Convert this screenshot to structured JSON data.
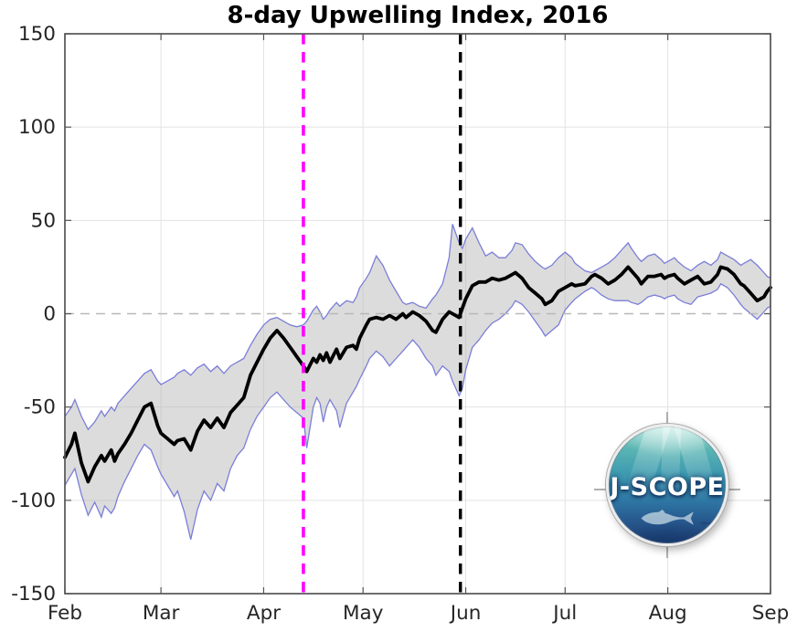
{
  "title": "8-day Upwelling Index, 2016",
  "logo": {
    "text": "J-SCOPE"
  },
  "chart_data": {
    "type": "line",
    "title": "8-day Upwelling Index, 2016",
    "xlabel": "",
    "ylabel": "",
    "grid": true,
    "legend": "none",
    "x_axis": {
      "unit": "days since Feb 1, 2016",
      "range": [
        0,
        213
      ],
      "tick_days": [
        0,
        29,
        60,
        90,
        121,
        151,
        182,
        213
      ],
      "tick_labels": [
        "Feb",
        "Mar",
        "Apr",
        "May",
        "Jun",
        "Jul",
        "Aug",
        "Sep"
      ]
    },
    "y_axis": {
      "range": [
        -150,
        150
      ],
      "ticks": [
        -150,
        -100,
        -50,
        0,
        50,
        100,
        150
      ],
      "tick_labels": [
        "-150",
        "-100",
        "-50",
        "0",
        "50",
        "100",
        "150"
      ]
    },
    "x_days": [
      0,
      2,
      3,
      5,
      7,
      9,
      11,
      12,
      14,
      15,
      16,
      18,
      20,
      22,
      24,
      26,
      28,
      29,
      31,
      33,
      34,
      36,
      38,
      40,
      42,
      44,
      46,
      48,
      50,
      52,
      54,
      56,
      58,
      60,
      62,
      64,
      66,
      68,
      70,
      72,
      73,
      75,
      76,
      77,
      78,
      79,
      80,
      82,
      83,
      85,
      87,
      88,
      89,
      91,
      92,
      94,
      96,
      98,
      100,
      102,
      103,
      105,
      107,
      109,
      111,
      112,
      114,
      116,
      117,
      119,
      120,
      121,
      123,
      125,
      127,
      129,
      131,
      133,
      135,
      136,
      138,
      140,
      142,
      144,
      145,
      147,
      149,
      151,
      153,
      154,
      157,
      159,
      160,
      162,
      164,
      166,
      168,
      170,
      171,
      173,
      174,
      176,
      178,
      180,
      181,
      182,
      184,
      185,
      187,
      189,
      191,
      193,
      195,
      197,
      198,
      200,
      202,
      204,
      205,
      207,
      209,
      211,
      212,
      213
    ],
    "series": [
      {
        "name": "ensemble_mean",
        "style": "solid",
        "color": "#000000",
        "width": 3.8,
        "values": [
          -77,
          -70,
          -64,
          -80,
          -90,
          -82,
          -76,
          -79,
          -73,
          -79,
          -75,
          -70,
          -64,
          -57,
          -50,
          -48,
          -60,
          -64,
          -67,
          -70,
          -68,
          -67,
          -73,
          -63,
          -57,
          -61,
          -56,
          -61,
          -53,
          -49,
          -45,
          -33,
          -26,
          -19,
          -13,
          -9,
          -13,
          -18,
          -23,
          -28,
          -31,
          -24,
          -26,
          -22,
          -25,
          -21,
          -26,
          -19,
          -24,
          -18,
          -17,
          -19,
          -13,
          -6,
          -3,
          -2,
          -3,
          -1,
          -3,
          0,
          -2,
          1,
          -1,
          -4,
          -9,
          -10,
          -3,
          1,
          0,
          -2,
          3,
          8,
          15,
          17,
          17,
          19,
          18,
          19,
          21,
          22,
          19,
          14,
          11,
          8,
          5,
          7,
          12,
          14,
          16,
          15,
          16,
          20,
          21,
          19,
          16,
          18,
          21,
          25,
          23,
          19,
          16,
          20,
          20,
          21,
          19,
          20,
          21,
          19,
          16,
          18,
          20,
          16,
          17,
          21,
          25,
          24,
          21,
          16,
          15,
          11,
          7,
          9,
          12,
          14
        ]
      },
      {
        "name": "ensemble_spread_lower",
        "style": "band_edge",
        "color": "#7b7ed8",
        "width": 1.3,
        "values": [
          -92,
          -86,
          -83,
          -97,
          -108,
          -101,
          -109,
          -103,
          -107,
          -104,
          -98,
          -90,
          -83,
          -76,
          -70,
          -73,
          -82,
          -86,
          -92,
          -98,
          -95,
          -106,
          -121,
          -105,
          -95,
          -100,
          -91,
          -95,
          -83,
          -76,
          -72,
          -62,
          -55,
          -50,
          -45,
          -42,
          -46,
          -50,
          -53,
          -56,
          -72,
          -50,
          -45,
          -48,
          -58,
          -50,
          -46,
          -52,
          -61,
          -48,
          -42,
          -39,
          -35,
          -28,
          -24,
          -20,
          -23,
          -28,
          -24,
          -20,
          -18,
          -14,
          -18,
          -24,
          -28,
          -33,
          -28,
          -31,
          -36,
          -44,
          -40,
          -30,
          -18,
          -14,
          -9,
          -5,
          -3,
          0,
          4,
          7,
          5,
          1,
          -4,
          -9,
          -12,
          -9,
          -6,
          2,
          6,
          8,
          12,
          14,
          13,
          10,
          8,
          7,
          7,
          7,
          6,
          5,
          6,
          9,
          10,
          9,
          8,
          9,
          10,
          8,
          6,
          5,
          9,
          10,
          11,
          13,
          16,
          14,
          10,
          5,
          3,
          0,
          -3,
          1,
          3,
          4
        ]
      },
      {
        "name": "ensemble_spread_upper",
        "style": "band_edge",
        "color": "#7b7ed8",
        "width": 1.3,
        "values": [
          -55,
          -50,
          -46,
          -55,
          -62,
          -58,
          -52,
          -55,
          -50,
          -52,
          -48,
          -44,
          -40,
          -36,
          -32,
          -30,
          -36,
          -38,
          -36,
          -34,
          -32,
          -30,
          -33,
          -29,
          -27,
          -31,
          -28,
          -32,
          -28,
          -26,
          -24,
          -17,
          -11,
          -6,
          -3,
          -2,
          -4,
          -6,
          -7,
          -6,
          -4,
          2,
          4,
          1,
          -3,
          -1,
          2,
          6,
          4,
          7,
          6,
          9,
          14,
          19,
          22,
          31,
          26,
          18,
          12,
          6,
          5,
          6,
          4,
          3,
          8,
          10,
          16,
          30,
          48,
          38,
          35,
          40,
          46,
          38,
          31,
          33,
          30,
          30,
          34,
          38,
          37,
          32,
          28,
          25,
          24,
          26,
          30,
          33,
          30,
          27,
          23,
          22,
          23,
          25,
          27,
          30,
          34,
          38,
          35,
          30,
          28,
          31,
          32,
          29,
          27,
          28,
          30,
          28,
          25,
          23,
          26,
          28,
          26,
          29,
          33,
          31,
          29,
          26,
          27,
          29,
          26,
          22,
          20,
          19
        ]
      }
    ],
    "band_fill": "#b2b2b2",
    "band_fill_opacity": 0.45,
    "annotations": {
      "zero_line": {
        "y": 0,
        "style": "dashed",
        "color": "#b8b8b8"
      },
      "vertical_lines": [
        {
          "name": "forecast-init-magenta",
          "day": 72,
          "color": "#ff00ff",
          "style": "dashed",
          "width": 3.6
        },
        {
          "name": "forecast-init-black",
          "day": 119.4,
          "color": "#000000",
          "style": "dashed",
          "width": 3.4
        }
      ]
    },
    "colors": {
      "grid": "#e3e3e3",
      "axis_frame": "#555555",
      "tick_text": "#262626"
    }
  }
}
